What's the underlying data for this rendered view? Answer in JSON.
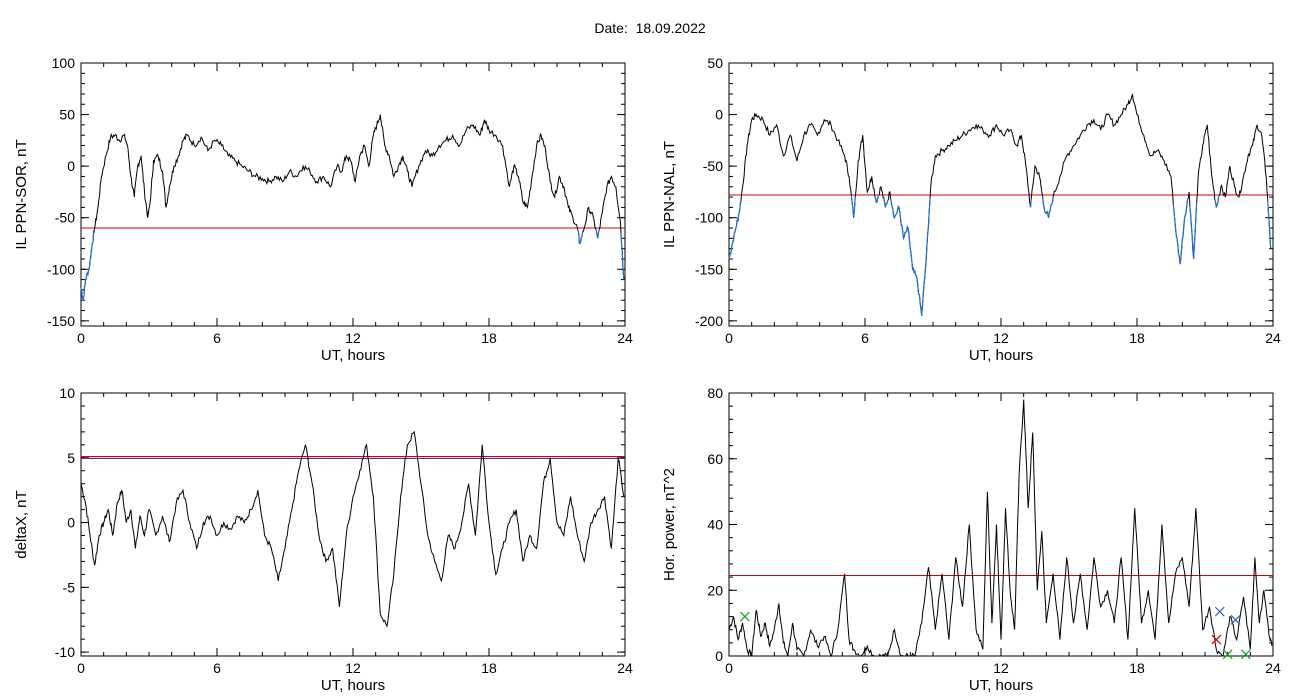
{
  "page": {
    "title": "Date:  18.09.2022"
  },
  "colors": {
    "trace": "#000000",
    "threshold": "#d40000",
    "threshold_alt": "#1a1a8c",
    "highlight": "#1f6fd0",
    "marker_green": "#1aa01a",
    "marker_blue": "#2a5fbf",
    "marker_red": "#d40000"
  },
  "chart_data": [
    {
      "id": "ppn-sor",
      "type": "line",
      "xlabel": "UT, hours",
      "ylabel": "IL PPN-SOR, nT",
      "xlim": [
        0,
        24
      ],
      "ylim": [
        -155,
        100
      ],
      "xticks": [
        "0",
        "6",
        "12",
        "18",
        "24"
      ],
      "yticks": [
        "100",
        "50",
        "0",
        "-50",
        "-100",
        "-150"
      ],
      "ytick_values": [
        100,
        50,
        0,
        -50,
        -100,
        -150
      ],
      "thresholds": [
        {
          "y": -60,
          "color": "threshold"
        }
      ],
      "x": [
        0,
        0.1,
        0.2,
        0.35,
        0.5,
        0.6,
        0.75,
        0.9,
        1.1,
        1.3,
        1.5,
        1.7,
        1.9,
        2.05,
        2.2,
        2.35,
        2.5,
        2.65,
        2.8,
        2.95,
        3.05,
        3.2,
        3.4,
        3.6,
        3.75,
        3.9,
        4.1,
        4.3,
        4.5,
        4.7,
        5.0,
        5.3,
        5.6,
        5.9,
        6.2,
        6.5,
        6.8,
        7.1,
        7.4,
        7.7,
        8.0,
        8.3,
        8.6,
        8.9,
        9.2,
        9.5,
        9.8,
        10.1,
        10.4,
        10.7,
        11.0,
        11.3,
        11.5,
        11.7,
        11.9,
        12.1,
        12.3,
        12.5,
        12.7,
        12.9,
        13.05,
        13.2,
        13.4,
        13.6,
        13.8,
        14.0,
        14.2,
        14.4,
        14.6,
        14.9,
        15.2,
        15.5,
        15.8,
        16.1,
        16.4,
        16.7,
        17.0,
        17.3,
        17.6,
        17.8,
        18.0,
        18.3,
        18.6,
        18.9,
        19.1,
        19.3,
        19.5,
        19.7,
        19.9,
        20.1,
        20.3,
        20.5,
        20.7,
        20.9,
        21.1,
        21.3,
        21.5,
        21.7,
        21.9,
        22.0,
        22.2,
        22.4,
        22.6,
        22.8,
        23.0,
        23.2,
        23.4,
        23.6,
        23.8,
        23.95
      ],
      "y": [
        -118,
        -130,
        -110,
        -100,
        -75,
        -60,
        -40,
        -10,
        10,
        28,
        30,
        25,
        30,
        20,
        -10,
        -30,
        0,
        10,
        -25,
        -50,
        -35,
        5,
        10,
        -5,
        -40,
        -20,
        0,
        10,
        25,
        30,
        20,
        28,
        15,
        25,
        20,
        10,
        5,
        0,
        -5,
        -10,
        -12,
        -15,
        -10,
        -15,
        -5,
        -10,
        0,
        -5,
        -15,
        -10,
        -20,
        0,
        -5,
        10,
        5,
        -15,
        10,
        20,
        0,
        30,
        40,
        50,
        20,
        10,
        -10,
        0,
        10,
        -5,
        -20,
        0,
        15,
        10,
        20,
        25,
        30,
        20,
        35,
        40,
        30,
        45,
        35,
        30,
        20,
        -20,
        0,
        -10,
        -35,
        -40,
        -10,
        20,
        30,
        15,
        -15,
        -30,
        -10,
        -20,
        -40,
        -50,
        -60,
        -75,
        -60,
        -40,
        -50,
        -70,
        -45,
        -20,
        -10,
        -20,
        -55,
        -110
      ],
      "highlight_below": true
    },
    {
      "id": "ppn-nal",
      "type": "line",
      "xlabel": "UT, hours",
      "ylabel": "IL PPN-NAL, nT",
      "xlim": [
        0,
        24
      ],
      "ylim": [
        -205,
        50
      ],
      "xticks": [
        "0",
        "6",
        "12",
        "18",
        "24"
      ],
      "yticks": [
        "50",
        "0",
        "-50",
        "-100",
        "-150",
        "-200"
      ],
      "ytick_values": [
        50,
        0,
        -50,
        -100,
        -150,
        -200
      ],
      "thresholds": [
        {
          "y": -78,
          "color": "threshold"
        }
      ],
      "x": [
        0,
        0.15,
        0.3,
        0.45,
        0.6,
        0.8,
        1.0,
        1.2,
        1.5,
        1.8,
        2.1,
        2.4,
        2.7,
        3.0,
        3.3,
        3.6,
        3.9,
        4.2,
        4.5,
        4.8,
        5.1,
        5.3,
        5.5,
        5.7,
        5.9,
        6.1,
        6.3,
        6.5,
        6.7,
        6.9,
        7.1,
        7.3,
        7.5,
        7.7,
        7.9,
        8.1,
        8.3,
        8.5,
        8.7,
        8.9,
        9.1,
        9.4,
        9.7,
        10.0,
        10.3,
        10.6,
        10.9,
        11.2,
        11.5,
        11.8,
        12.1,
        12.4,
        12.7,
        12.9,
        13.1,
        13.3,
        13.5,
        13.7,
        13.9,
        14.1,
        14.3,
        14.6,
        14.9,
        15.2,
        15.5,
        15.8,
        16.1,
        16.4,
        16.7,
        17.0,
        17.3,
        17.6,
        17.8,
        18.0,
        18.3,
        18.6,
        18.9,
        19.2,
        19.5,
        19.7,
        19.9,
        20.1,
        20.3,
        20.5,
        20.7,
        20.9,
        21.1,
        21.3,
        21.5,
        21.7,
        21.9,
        22.1,
        22.3,
        22.5,
        22.7,
        22.9,
        23.1,
        23.3,
        23.5,
        23.7,
        23.9
      ],
      "y": [
        -140,
        -125,
        -110,
        -95,
        -70,
        -30,
        -5,
        0,
        -5,
        -20,
        -10,
        -40,
        -20,
        -45,
        -20,
        -10,
        -20,
        -5,
        -10,
        -25,
        -40,
        -60,
        -100,
        -45,
        -20,
        -75,
        -60,
        -85,
        -70,
        -90,
        -75,
        -100,
        -90,
        -120,
        -110,
        -150,
        -160,
        -195,
        -140,
        -70,
        -40,
        -35,
        -30,
        -25,
        -20,
        -15,
        -10,
        -15,
        -20,
        -10,
        -20,
        -15,
        -30,
        -20,
        -50,
        -90,
        -50,
        -60,
        -90,
        -100,
        -80,
        -60,
        -40,
        -30,
        -20,
        -10,
        -5,
        -15,
        0,
        -10,
        0,
        10,
        20,
        0,
        -20,
        -40,
        -35,
        -45,
        -60,
        -110,
        -145,
        -100,
        -75,
        -140,
        -60,
        -30,
        -10,
        -60,
        -90,
        -70,
        -80,
        -50,
        -70,
        -80,
        -60,
        -40,
        -30,
        -10,
        -20,
        -60,
        -130
      ],
      "highlight_below": true
    },
    {
      "id": "deltax",
      "type": "line",
      "xlabel": "UT, hours",
      "ylabel": "deltaX, nT",
      "xlim": [
        0,
        24
      ],
      "ylim": [
        -10.3,
        10
      ],
      "xticks": [
        "0",
        "6",
        "12",
        "18",
        "24"
      ],
      "yticks": [
        "10",
        "5",
        "0",
        "-5",
        "-10"
      ],
      "ytick_values": [
        10,
        5,
        0,
        -5,
        -10
      ],
      "thresholds": [
        {
          "y": 5.1,
          "color": "threshold"
        },
        {
          "y": 4.95,
          "color": "threshold_alt"
        }
      ],
      "x": [
        0,
        0.2,
        0.4,
        0.6,
        0.8,
        1.0,
        1.2,
        1.4,
        1.6,
        1.8,
        2.0,
        2.2,
        2.4,
        2.6,
        2.8,
        3.0,
        3.3,
        3.6,
        3.9,
        4.2,
        4.5,
        4.8,
        5.1,
        5.4,
        5.7,
        6.0,
        6.3,
        6.6,
        6.9,
        7.2,
        7.5,
        7.8,
        8.1,
        8.4,
        8.7,
        9.0,
        9.3,
        9.6,
        9.9,
        10.2,
        10.5,
        10.8,
        11.1,
        11.4,
        11.7,
        12.0,
        12.3,
        12.6,
        12.9,
        13.2,
        13.5,
        13.8,
        14.1,
        14.4,
        14.7,
        15.0,
        15.3,
        15.6,
        15.9,
        16.2,
        16.5,
        16.8,
        17.1,
        17.4,
        17.7,
        18.0,
        18.3,
        18.6,
        18.9,
        19.2,
        19.5,
        19.8,
        20.1,
        20.4,
        20.7,
        21.0,
        21.3,
        21.6,
        21.9,
        22.2,
        22.5,
        22.8,
        23.1,
        23.4,
        23.7,
        23.95
      ],
      "y": [
        3,
        1.5,
        -1,
        -3.3,
        -1,
        0,
        1,
        -1,
        1.5,
        2.5,
        0,
        1,
        -2,
        0.5,
        -1,
        1,
        -1,
        0.5,
        -1.5,
        1.5,
        2.5,
        0,
        -2,
        0,
        0.5,
        -1,
        0,
        -0.5,
        0.5,
        0,
        1,
        2.5,
        -1,
        -2,
        -4.5,
        -2,
        1,
        4,
        6,
        3,
        -1,
        -3,
        -2,
        -6.5,
        -1,
        2,
        4,
        6,
        2,
        -7,
        -8,
        -4,
        2,
        6,
        7,
        3,
        -1,
        -3,
        -4.5,
        -1,
        -2,
        0,
        3,
        -1,
        6,
        0,
        -4,
        -2,
        0,
        1,
        -3,
        -1,
        -2,
        3,
        5,
        0,
        -1,
        2,
        -1,
        -3,
        0,
        1,
        2,
        -2,
        5,
        2
      ],
      "highlight_below": false
    },
    {
      "id": "hor-power",
      "type": "line",
      "xlabel": "UT, hours",
      "ylabel": "Hor. power, nT^2",
      "xlim": [
        0,
        24
      ],
      "ylim": [
        0,
        80
      ],
      "xticks": [
        "0",
        "6",
        "12",
        "18",
        "24"
      ],
      "yticks": [
        "80",
        "60",
        "40",
        "20",
        "0"
      ],
      "ytick_values": [
        80,
        60,
        40,
        20,
        0
      ],
      "thresholds": [
        {
          "y": 24.5,
          "color": "threshold"
        }
      ],
      "x": [
        0,
        0.2,
        0.4,
        0.6,
        0.8,
        1.0,
        1.2,
        1.4,
        1.6,
        1.8,
        2.0,
        2.2,
        2.4,
        2.6,
        2.8,
        3.0,
        3.3,
        3.6,
        3.9,
        4.2,
        4.5,
        4.8,
        5.1,
        5.3,
        5.5,
        5.8,
        6.1,
        6.4,
        6.7,
        7.0,
        7.3,
        7.6,
        7.9,
        8.2,
        8.5,
        8.8,
        9.1,
        9.4,
        9.7,
        10.0,
        10.3,
        10.6,
        10.9,
        11.2,
        11.4,
        11.6,
        11.8,
        12.0,
        12.2,
        12.4,
        12.6,
        12.8,
        13.0,
        13.2,
        13.4,
        13.6,
        13.8,
        14.0,
        14.3,
        14.6,
        14.9,
        15.2,
        15.5,
        15.8,
        16.1,
        16.4,
        16.7,
        17.0,
        17.3,
        17.6,
        17.9,
        18.2,
        18.5,
        18.8,
        19.1,
        19.4,
        19.7,
        20.0,
        20.3,
        20.6,
        20.9,
        21.2,
        21.5,
        21.8,
        22.1,
        22.4,
        22.7,
        23.0,
        23.2,
        23.4,
        23.6,
        23.8,
        23.95
      ],
      "y": [
        8,
        12,
        5,
        10,
        2,
        0,
        14,
        6,
        10,
        3,
        8,
        16,
        4,
        0,
        10,
        2,
        0,
        8,
        3,
        6,
        0,
        8,
        25,
        5,
        2,
        0,
        3,
        0,
        0,
        0,
        8,
        0,
        0,
        0,
        10,
        27,
        8,
        25,
        5,
        30,
        15,
        40,
        8,
        2,
        50,
        10,
        40,
        5,
        45,
        20,
        8,
        55,
        78,
        45,
        68,
        20,
        38,
        10,
        25,
        5,
        30,
        10,
        25,
        8,
        30,
        15,
        20,
        10,
        30,
        5,
        45,
        10,
        20,
        5,
        40,
        10,
        25,
        30,
        15,
        45,
        8,
        15,
        2,
        0,
        12,
        5,
        18,
        2,
        30,
        10,
        20,
        8,
        3
      ],
      "highlight_below": false,
      "markers": [
        {
          "x": 0.7,
          "y": 12,
          "symbol": "x",
          "color": "marker_green"
        },
        {
          "x": 21.65,
          "y": 13.5,
          "symbol": "x",
          "color": "marker_blue"
        },
        {
          "x": 22.35,
          "y": 11,
          "symbol": "x",
          "color": "marker_blue"
        },
        {
          "x": 21.5,
          "y": 5,
          "symbol": "x",
          "color": "marker_red"
        },
        {
          "x": 22.0,
          "y": 0.5,
          "symbol": "x",
          "color": "marker_green"
        },
        {
          "x": 22.8,
          "y": 0.5,
          "symbol": "x",
          "color": "marker_green"
        }
      ]
    }
  ]
}
